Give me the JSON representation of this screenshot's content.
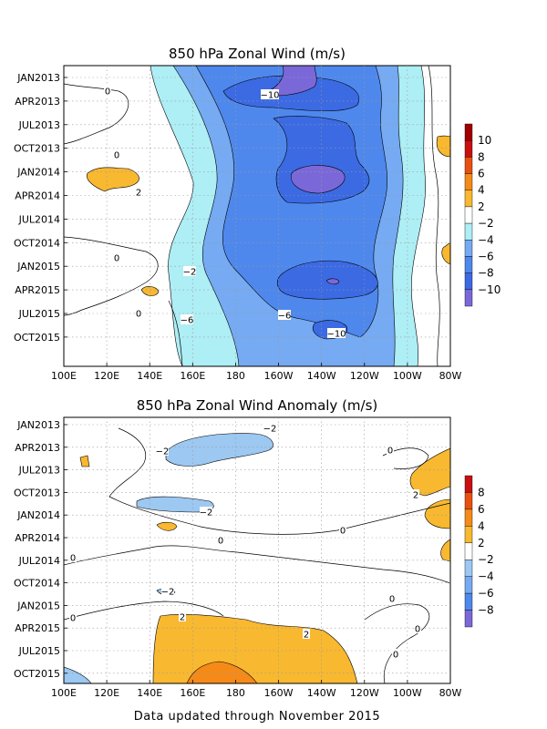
{
  "footer": "Data updated through November 2015",
  "chart_data": [
    {
      "type": "heatmap",
      "title": "850 hPa Zonal Wind (m/s)",
      "x_ticks": [
        "100E",
        "120E",
        "140E",
        "160E",
        "180",
        "160W",
        "140W",
        "120W",
        "100W",
        "80W"
      ],
      "y_ticks": [
        "JAN2013",
        "APR2013",
        "JUL2013",
        "OCT2013",
        "JAN2014",
        "APR2014",
        "JUL2014",
        "OCT2014",
        "JAN2015",
        "APR2015",
        "JUL2015",
        "OCT2015"
      ],
      "levels": [
        -10,
        -8,
        -6,
        -4,
        -2,
        2,
        4,
        6,
        8,
        10
      ],
      "colorbar_labels": [
        "10",
        "8",
        "6",
        "4",
        "2",
        "−2",
        "−4",
        "−6",
        "−8",
        "−10"
      ],
      "colors": {
        "neg10": "#7b68d8",
        "neg8": "#3b6ae3",
        "neg6": "#4f88ec",
        "neg4": "#76aaf2",
        "neg2": "#aeeef5",
        "zero": "#ffffff",
        "pos2": "#f8b830",
        "pos4": "#f58a18",
        "pos6": "#e85010",
        "pos8": "#c81010",
        "pos10": "#a00000"
      },
      "contour_labels": [
        "0",
        "0",
        "2",
        "0",
        "−2",
        "0",
        "−6",
        "−6",
        "−10",
        "−10"
      ],
      "grid": true
    },
    {
      "type": "heatmap",
      "title": "850 hPa Zonal Wind Anomaly (m/s)",
      "x_ticks": [
        "100E",
        "120E",
        "140E",
        "160E",
        "180",
        "160W",
        "140W",
        "120W",
        "100W",
        "80W"
      ],
      "y_ticks": [
        "JAN2013",
        "APR2013",
        "JUL2013",
        "OCT2013",
        "JAN2014",
        "APR2014",
        "JUL2014",
        "OCT2014",
        "JAN2015",
        "APR2015",
        "JUL2015",
        "OCT2015"
      ],
      "levels": [
        -8,
        -6,
        -4,
        -2,
        2,
        4,
        6,
        8
      ],
      "colorbar_labels": [
        "8",
        "6",
        "4",
        "2",
        "−2",
        "−4",
        "−6",
        "−8"
      ],
      "contour_labels": [
        "−2",
        "−2",
        "0",
        "2",
        "−2",
        "0",
        "0",
        "−2",
        "0",
        "2",
        "0",
        "2",
        "0",
        "0",
        "0"
      ],
      "grid": true
    }
  ]
}
